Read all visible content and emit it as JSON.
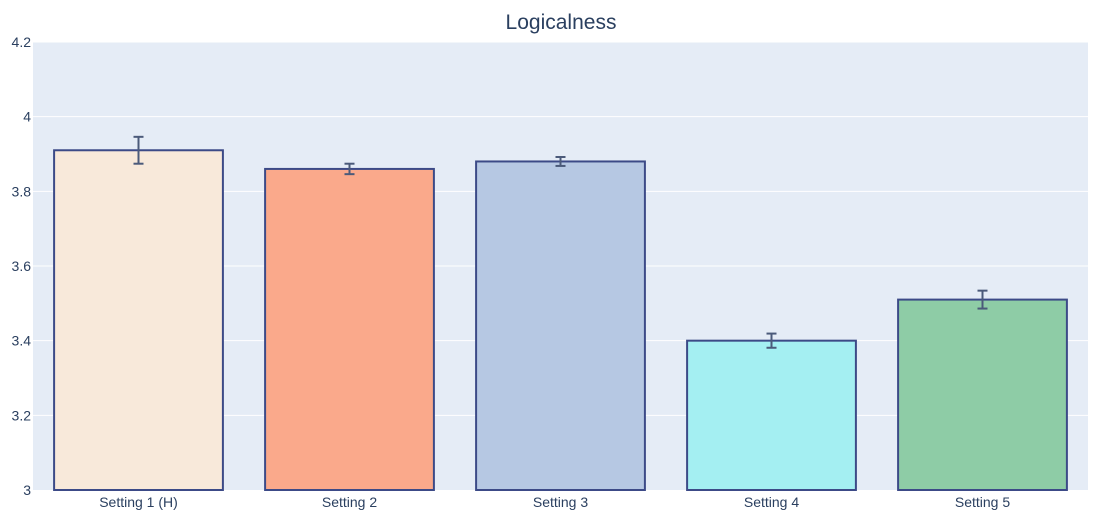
{
  "chart_data": {
    "type": "bar",
    "title": "Logicalness",
    "xlabel": "",
    "ylabel": "",
    "categories": [
      "Setting 1 (H)",
      "Setting 2",
      "Setting 3",
      "Setting 4",
      "Setting 5"
    ],
    "values": [
      3.91,
      3.86,
      3.88,
      3.4,
      3.51
    ],
    "error": [
      0.036,
      0.014,
      0.012,
      0.019,
      0.024
    ],
    "ylim": [
      3,
      4.2
    ],
    "yticks": [
      3,
      3.2,
      3.4,
      3.6,
      3.8,
      4,
      4.2
    ],
    "ytick_labels": [
      "3",
      "3.2",
      "3.4",
      "3.6",
      "3.8",
      "4",
      "4.2"
    ],
    "colors": [
      "#f8e9da",
      "#faa98b",
      "#b6c8e3",
      "#a4eff2",
      "#8ecca6"
    ],
    "bar_edge_color": "#3c4a87",
    "error_bar_color": "#4b5a7a",
    "plot_background": "#e5ecf6",
    "grid": true,
    "legend": false
  }
}
